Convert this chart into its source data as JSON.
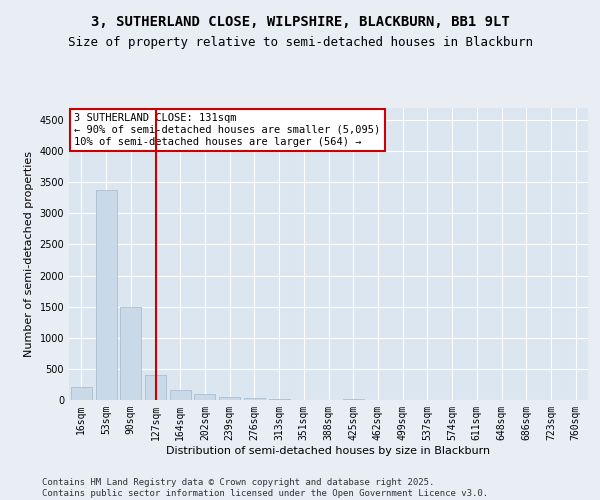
{
  "title_line1": "3, SUTHERLAND CLOSE, WILPSHIRE, BLACKBURN, BB1 9LT",
  "title_line2": "Size of property relative to semi-detached houses in Blackburn",
  "xlabel": "Distribution of semi-detached houses by size in Blackburn",
  "ylabel": "Number of semi-detached properties",
  "categories": [
    "16sqm",
    "53sqm",
    "90sqm",
    "127sqm",
    "164sqm",
    "202sqm",
    "239sqm",
    "276sqm",
    "313sqm",
    "351sqm",
    "388sqm",
    "425sqm",
    "462sqm",
    "499sqm",
    "537sqm",
    "574sqm",
    "611sqm",
    "648sqm",
    "686sqm",
    "723sqm",
    "760sqm"
  ],
  "values": [
    205,
    3380,
    1500,
    400,
    155,
    100,
    50,
    28,
    18,
    5,
    0,
    20,
    0,
    0,
    0,
    0,
    0,
    0,
    0,
    0,
    0
  ],
  "bar_color": "#c9d9e8",
  "bar_edge_color": "#a0b8cc",
  "vline_x_index": 3.0,
  "vline_color": "#cc0000",
  "annotation_text": "3 SUTHERLAND CLOSE: 131sqm\n← 90% of semi-detached houses are smaller (5,095)\n10% of semi-detached houses are larger (564) →",
  "annotation_box_color": "#ffffff",
  "annotation_box_edge": "#cc0000",
  "ylim": [
    0,
    4700
  ],
  "yticks": [
    0,
    500,
    1000,
    1500,
    2000,
    2500,
    3000,
    3500,
    4000,
    4500
  ],
  "background_color": "#e8eef4",
  "plot_background": "#dce6f0",
  "grid_color": "#ffffff",
  "footer": "Contains HM Land Registry data © Crown copyright and database right 2025.\nContains public sector information licensed under the Open Government Licence v3.0.",
  "title_fontsize": 10,
  "subtitle_fontsize": 9,
  "axis_label_fontsize": 8,
  "tick_fontsize": 7,
  "footer_fontsize": 6.5,
  "annotation_fontsize": 7.5
}
